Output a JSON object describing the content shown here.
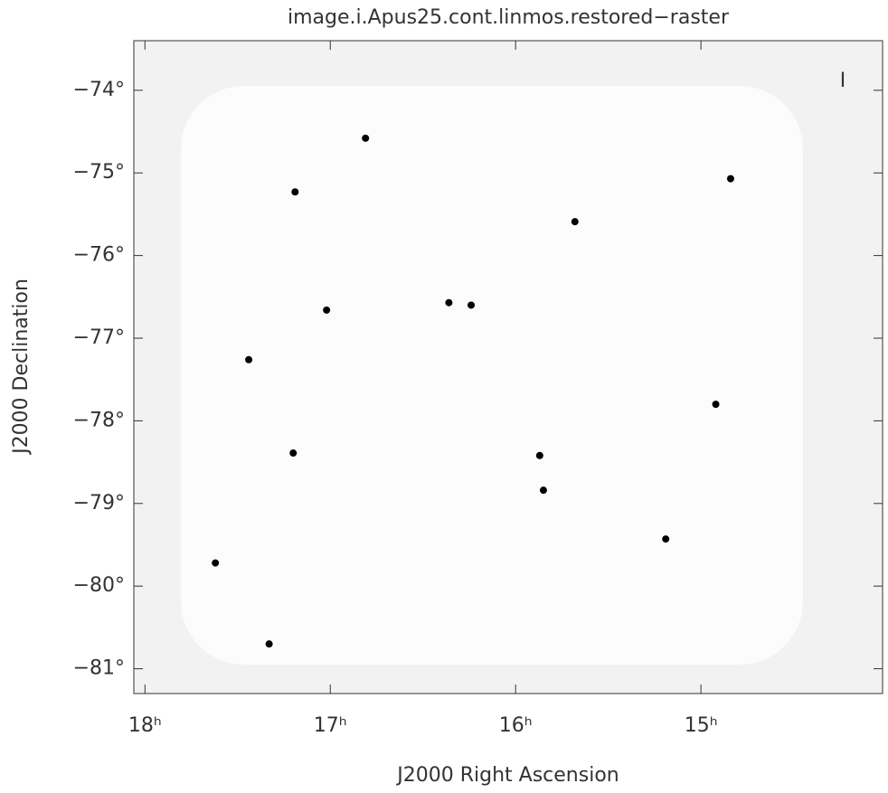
{
  "chart_data": {
    "type": "scatter",
    "title": "image.i.Apus25.cont.linmos.restored−raster",
    "x_label": "J2000 Right Ascension",
    "y_label": "J2000 Declination",
    "annotation": "I",
    "color": "#000000",
    "xlim": [
      18.06,
      14.02
    ],
    "ylim": [
      -81.3,
      -73.4
    ],
    "xticks": [
      {
        "value": 18,
        "label": "18ʰ"
      },
      {
        "value": 17,
        "label": "17ʰ"
      },
      {
        "value": 16,
        "label": "16ʰ"
      },
      {
        "value": 15,
        "label": "15ʰ"
      }
    ],
    "yticks": [
      {
        "value": -74,
        "label": "−74°"
      },
      {
        "value": -75,
        "label": "−75°"
      },
      {
        "value": -76,
        "label": "−76°"
      },
      {
        "value": -77,
        "label": "−77°"
      },
      {
        "value": -78,
        "label": "−78°"
      },
      {
        "value": -79,
        "label": "−79°"
      },
      {
        "value": -80,
        "label": "−80°"
      },
      {
        "value": -81,
        "label": "−81°"
      }
    ],
    "x": [
      17.02,
      16.36,
      16.24,
      17.44,
      16.81,
      14.84,
      15.87,
      15.85,
      17.62,
      17.2,
      17.33,
      14.92,
      15.19,
      15.68,
      17.19
    ],
    "values": [
      -76.66,
      -76.57,
      -76.6,
      -77.26,
      -74.58,
      -75.07,
      -78.42,
      -78.84,
      -79.72,
      -78.39,
      -80.7,
      -77.8,
      -79.43,
      -75.59,
      -75.23
    ]
  }
}
